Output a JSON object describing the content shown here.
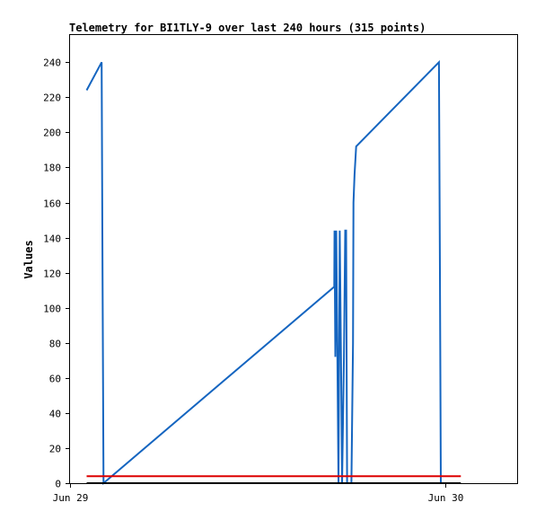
{
  "chart_data": {
    "type": "line",
    "title": "Telemetry for BI1TLY-9 over last 240 hours (315 points)",
    "xlabel": "",
    "ylabel": "Values",
    "x_range_hours": [
      0,
      28.6
    ],
    "xticks": [
      {
        "label": "Jun 29",
        "hours": 0
      },
      {
        "label": "Jun 30",
        "hours": 24
      }
    ],
    "ylim": [
      0,
      256
    ],
    "yticks": [
      0,
      20,
      40,
      60,
      80,
      100,
      120,
      140,
      160,
      180,
      200,
      220,
      240
    ],
    "grid": false,
    "legend": "none",
    "series": [
      {
        "color": "#1565c0",
        "points": [
          [
            1.06,
            224
          ],
          [
            2.02,
            240
          ],
          [
            2.02,
            240
          ],
          [
            2.08,
            120
          ],
          [
            2.14,
            0
          ],
          [
            16.9,
            112
          ],
          [
            16.92,
            144
          ],
          [
            16.97,
            72
          ],
          [
            17.03,
            144
          ],
          [
            17.1,
            72
          ],
          [
            17.17,
            0
          ],
          [
            17.25,
            144
          ],
          [
            17.33,
            72
          ],
          [
            17.4,
            0
          ],
          [
            17.52,
            72
          ],
          [
            17.6,
            144
          ],
          [
            17.66,
            144
          ],
          [
            17.72,
            0
          ],
          [
            18.0,
            0
          ],
          [
            18.1,
            80
          ],
          [
            18.13,
            160
          ],
          [
            18.2,
            176
          ],
          [
            18.3,
            192
          ],
          [
            23.6,
            240
          ],
          [
            23.66,
            120
          ],
          [
            23.72,
            0
          ]
        ]
      },
      {
        "color": "#dd0000",
        "points": [
          [
            1.06,
            4
          ],
          [
            25.0,
            4
          ]
        ]
      },
      {
        "color": "#000000",
        "points": [
          [
            1.06,
            0
          ],
          [
            25.0,
            0
          ]
        ]
      }
    ]
  }
}
